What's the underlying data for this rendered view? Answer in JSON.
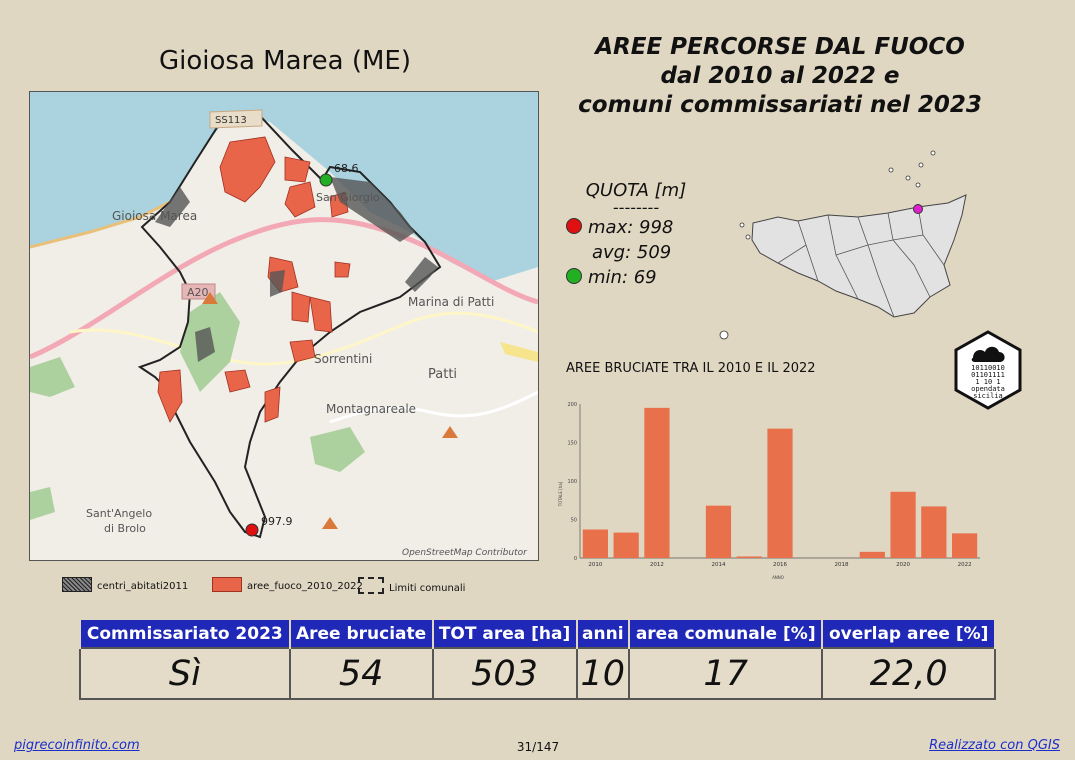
{
  "map_title": "Gioiosa Marea (ME)",
  "main_title": {
    "line1": "AREE PERCORSE DAL FUOCO",
    "line2": "dal 2010 al 2022 e",
    "line3": "comuni commissariati nel 2023"
  },
  "quota": {
    "title": "QUOTA [m]",
    "dashes": "--------",
    "max": "max: 998",
    "avg": "avg: 509",
    "min": "min: 69",
    "max_color": "#e01010",
    "min_color": "#22b022"
  },
  "map": {
    "labels": {
      "road_ss113": "SS113",
      "gioiosa": "Gioiosa Marea",
      "san_giorgio": "San Giorgio",
      "a20": "A20",
      "marina_di_patti": "Marina di Patti",
      "sorrentini": "Sorrentini",
      "patti": "Patti",
      "montagnareale": "Montagnareale",
      "sant_angelo_1": "Sant'Angelo",
      "sant_angelo_2": "di Brolo",
      "point_low": "68.6",
      "point_high": "997.9",
      "attribution": "OpenStreetMap Contributor"
    },
    "colors": {
      "sea": "#aad3df",
      "land": "#f1eee8",
      "fire": "#e8654a",
      "urban": "#555555",
      "green": "#add19e"
    }
  },
  "legend": {
    "urban": "centri_abitati2011",
    "fire": "aree_fuoco_2010_2022",
    "boundary": "Limiti comunali"
  },
  "chart_title": "AREE BRUCIATE TRA IL 2010 E IL 2022",
  "chart_data": {
    "type": "bar",
    "x": [
      2010,
      2011,
      2012,
      2013,
      2014,
      2015,
      2016,
      2017,
      2018,
      2019,
      2020,
      2021,
      2022
    ],
    "values": [
      37,
      33,
      195,
      0,
      68,
      2,
      168,
      0,
      0,
      8,
      86,
      67,
      32
    ],
    "ylabel": "TOTALE [ha]",
    "xlabel": "ANNO",
    "ylim": [
      0,
      200
    ],
    "yticks": [
      0,
      50,
      100,
      150,
      200
    ],
    "xticks": [
      2010,
      2012,
      2014,
      2016,
      2018,
      2020,
      2022
    ],
    "xlim": [
      2009.5,
      2022.5
    ],
    "color": "#e8704a"
  },
  "badge": {
    "line1": "10110010",
    "line2": "01101111",
    "line3": "1   10 1",
    "line4": "opendata",
    "line5": "sicilia"
  },
  "table": {
    "headers": [
      "Commissariato 2023",
      "Aree bruciate",
      "TOT area [ha]",
      "anni",
      "area comunale [%]",
      "overlap aree [%]"
    ],
    "values": [
      "Sì",
      "54",
      "503",
      "10",
      "17",
      "22,0"
    ]
  },
  "footer": {
    "left": "pigrecoinfinito.com",
    "center": "31/147",
    "right": "Realizzato con QGIS"
  },
  "colors": {
    "background": "#e0d7c3",
    "header_blue": "#2028b8",
    "link_blue": "#1b2ec8"
  }
}
